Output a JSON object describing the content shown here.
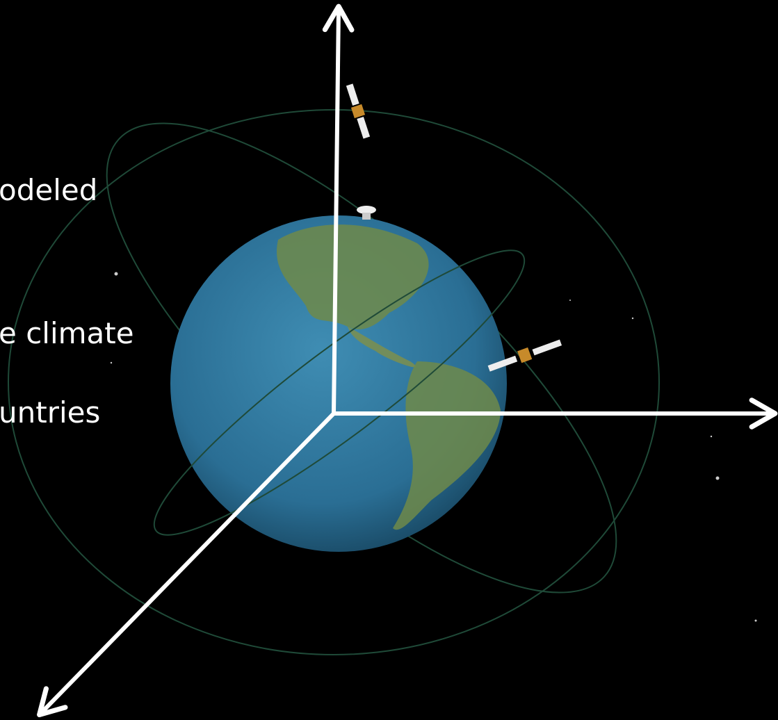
{
  "text_lines": [
    "odeled",
    "e climate",
    "untries"
  ]
}
